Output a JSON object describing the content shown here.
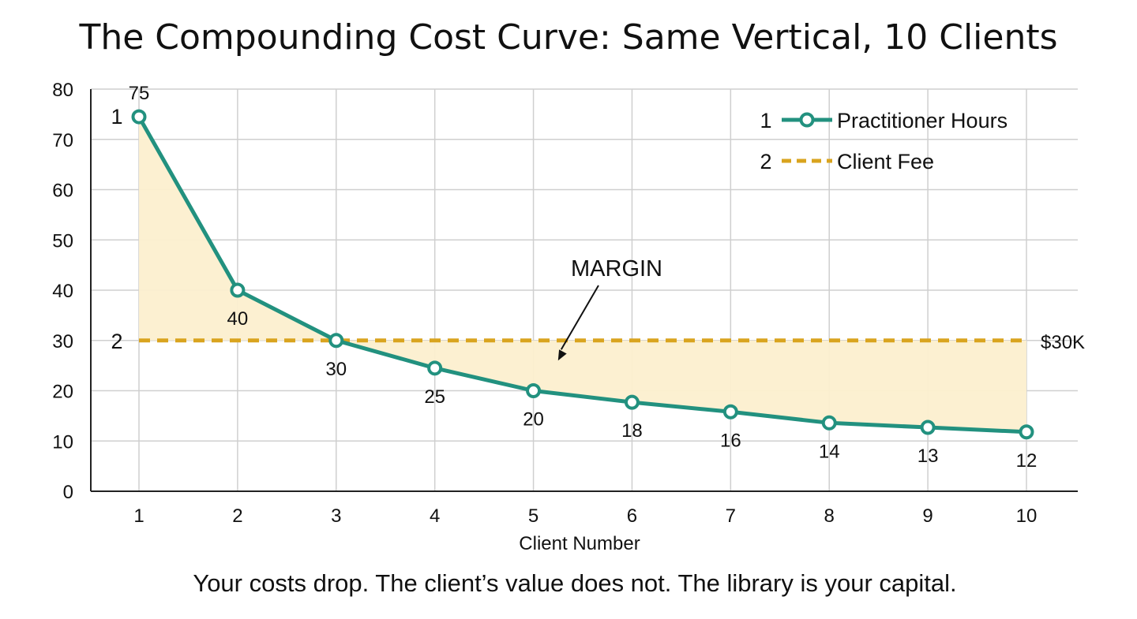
{
  "chart_data": {
    "type": "line",
    "title": "The Compounding Cost Curve: Same Vertical, 10 Clients",
    "xlabel": "Client Number",
    "ylabel": "",
    "caption": "Your costs drop. The client’s value does not. The library is your capital.",
    "x": [
      1,
      2,
      3,
      4,
      5,
      6,
      7,
      8,
      9,
      10
    ],
    "xlim": [
      1,
      10
    ],
    "ylim": [
      0,
      80
    ],
    "yticks": [
      0,
      10,
      20,
      30,
      40,
      50,
      60,
      70,
      80
    ],
    "grid": true,
    "legend_position": "top-right",
    "series": [
      {
        "name": "Practitioner Hours",
        "marker_label": "1",
        "color": "#22917f",
        "values": [
          74.5,
          40,
          30,
          24.5,
          20,
          17.7,
          15.8,
          13.6,
          12.7,
          11.8
        ],
        "data_labels": [
          "75",
          "40",
          "30",
          "25",
          "20",
          "18",
          "16",
          "14",
          "13",
          "12"
        ]
      },
      {
        "name": "Client Fee",
        "marker_label": "2",
        "color": "#d9a41f",
        "values": [
          30,
          30,
          30,
          30,
          30,
          30,
          30,
          30,
          30,
          30
        ],
        "end_label": "$30K"
      }
    ],
    "annotations": [
      {
        "text": "MARGIN",
        "points_to": {
          "x": 5.25,
          "y": 26
        }
      }
    ],
    "fill_color": "#fcefcf"
  }
}
